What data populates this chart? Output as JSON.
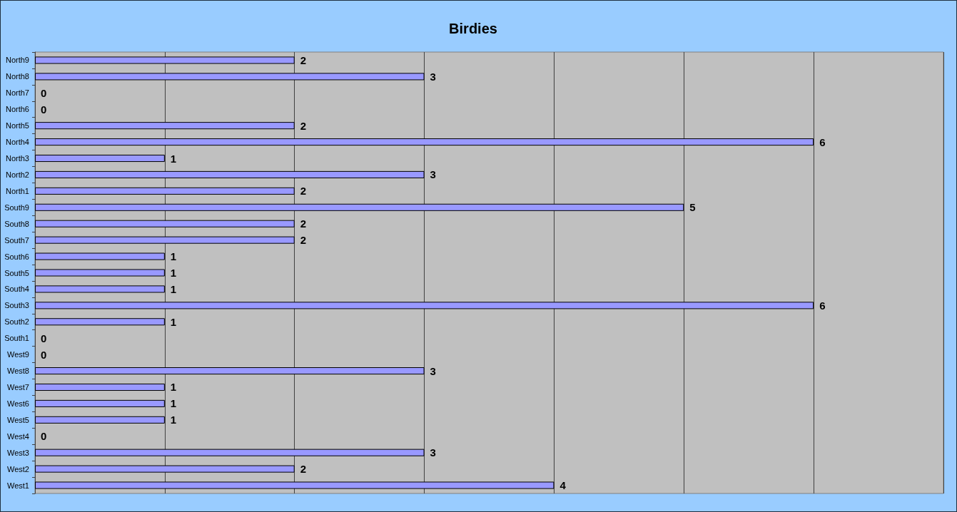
{
  "chart_data": {
    "type": "bar",
    "orientation": "horizontal",
    "title": "Birdies",
    "categories": [
      "North9",
      "North8",
      "North7",
      "North6",
      "North5",
      "North4",
      "North3",
      "North2",
      "North1",
      "South9",
      "South8",
      "South7",
      "South6",
      "South5",
      "South4",
      "South3",
      "South2",
      "South1",
      "West9",
      "West8",
      "West7",
      "West6",
      "West5",
      "West4",
      "West3",
      "West2",
      "West1"
    ],
    "values": [
      2,
      3,
      0,
      0,
      2,
      6,
      1,
      3,
      2,
      5,
      2,
      2,
      1,
      1,
      1,
      6,
      1,
      0,
      0,
      3,
      1,
      1,
      1,
      0,
      3,
      2,
      4
    ],
    "color": "#9999ff",
    "xlim": [
      0,
      7
    ],
    "xticks": [
      {
        "value": 0,
        "label": null
      },
      {
        "value": 1,
        "label": null
      },
      {
        "value": 2,
        "label": null
      },
      {
        "value": 3,
        "label": null
      },
      {
        "value": 4,
        "label": null
      },
      {
        "value": 5,
        "label": null
      },
      {
        "value": 6,
        "label": null
      },
      {
        "value": 7,
        "label": null
      }
    ],
    "grid": "x",
    "tick_labels": "y",
    "data_labels": true
  }
}
